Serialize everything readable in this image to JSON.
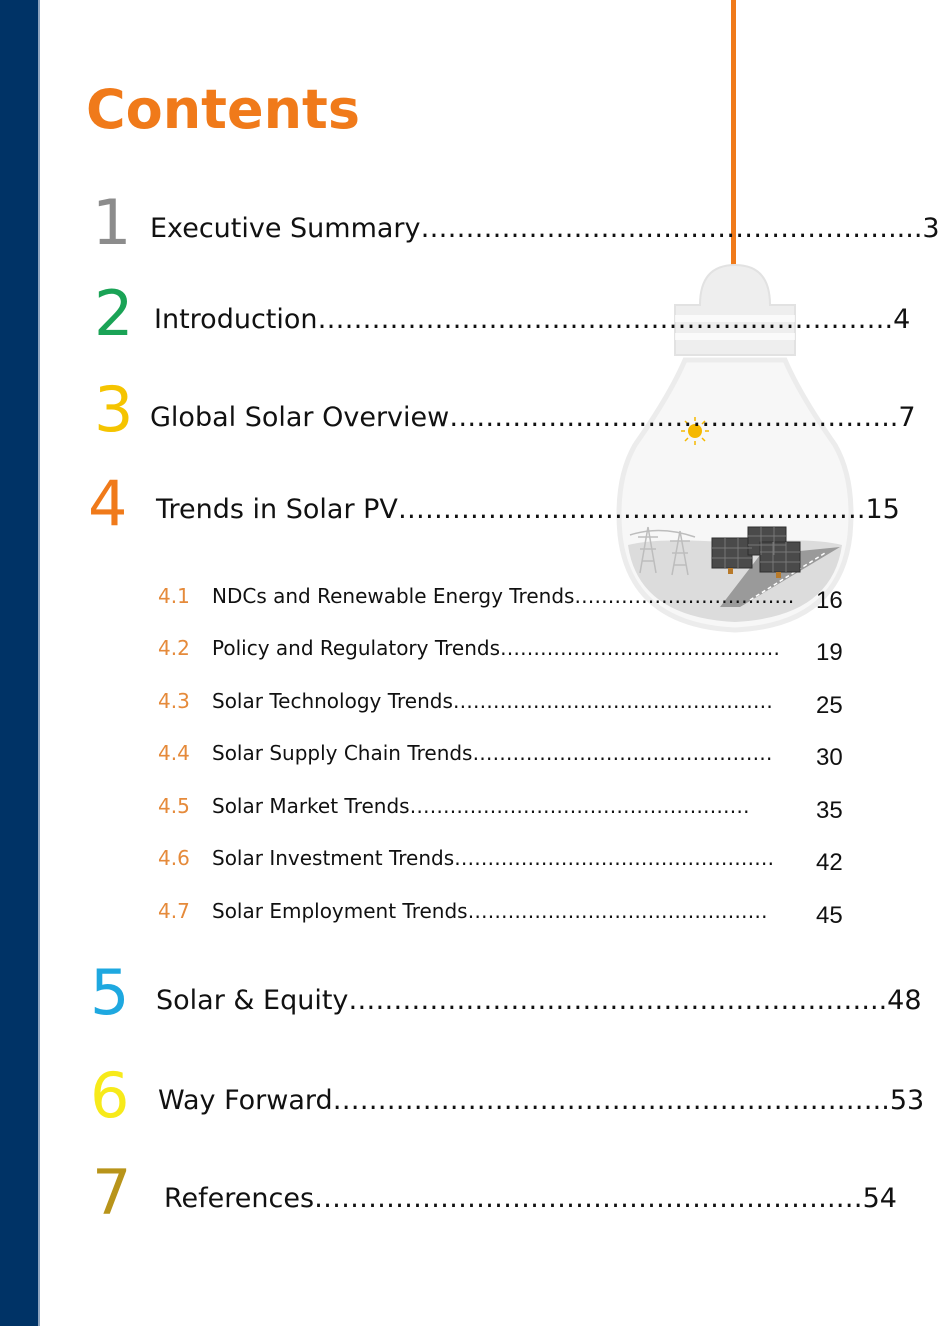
{
  "title": "Contents",
  "colors": {
    "sidebar": "#003366",
    "accent": "#f07a1a",
    "num1": "#8c8c8c",
    "num2": "#1aa356",
    "num3": "#f5c400",
    "num4": "#f07a1a",
    "num5": "#1ea8e0",
    "num6": "#f7ea1a",
    "num7": "#b8941a",
    "sub_num": "#e58a3a"
  },
  "illustration": {
    "icons": [
      "light-bulb-icon",
      "sun-icon",
      "solar-panel-icon",
      "power-pylon-icon"
    ]
  },
  "main_entries": [
    {
      "num": "1",
      "text": "Executive Summary…………………….………………………....3"
    },
    {
      "num": "2",
      "text": "Introduction……………………………………………………….4"
    },
    {
      "num": "3",
      "text": "Global Solar Overview…………………………………………..7"
    },
    {
      "num": "4",
      "text": "Trends in Solar PV…………………………………………….15"
    },
    {
      "num": "5",
      "text": "Solar & Equity…………………………………………………...48"
    },
    {
      "num": "6",
      "text": "Way Forward……………………………………………………..53"
    },
    {
      "num": "7",
      "text": "References………………………………………………….…54"
    }
  ],
  "sub_entries": [
    {
      "num": "4.1",
      "text": "NDCs and Renewable Energy Trends……………………………",
      "page": "16"
    },
    {
      "num": "4.2",
      "text": "Policy and Regulatory Trends……………………………………",
      "page": "19"
    },
    {
      "num": "4.3",
      "text": "Solar Technology Trends…………………………………………",
      "page": "25"
    },
    {
      "num": "4.4",
      "text": "Solar Supply Chain Trends………………………………………",
      "page": "30"
    },
    {
      "num": "4.5",
      "text": " Solar Market Trends……………………………………………",
      "page": "35"
    },
    {
      "num": "4.6",
      "text": "Solar Investment Trends…………………………………………",
      "page": "42"
    },
    {
      "num": "4.7",
      "text": "Solar Employment Trends………………………………………",
      "page": "45"
    }
  ]
}
